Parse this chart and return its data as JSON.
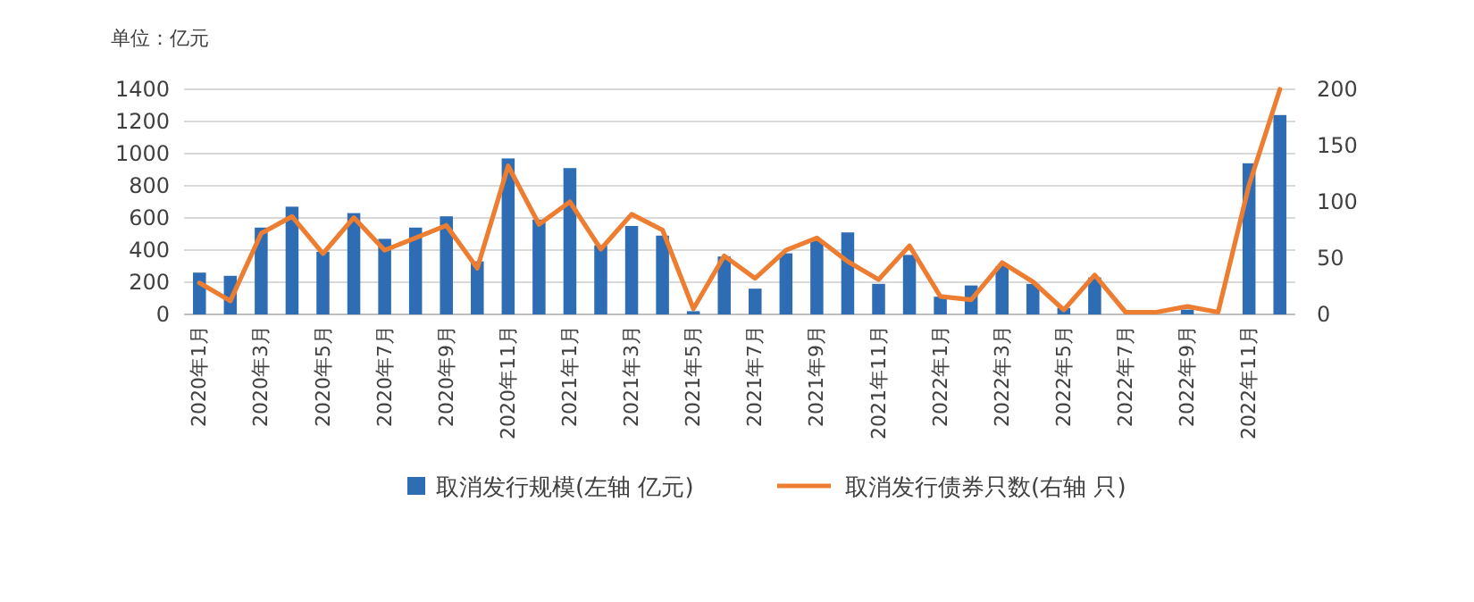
{
  "chart_data": {
    "type": "bar",
    "categories": [
      "2020年1月",
      null,
      "2020年3月",
      null,
      "2020年5月",
      null,
      "2020年7月",
      null,
      "2020年9月",
      null,
      "2020年11月",
      null,
      "2021年1月",
      null,
      "2021年3月",
      null,
      "2021年5月",
      null,
      "2021年7月",
      null,
      "2021年9月",
      null,
      "2021年11月",
      null,
      "2022年1月",
      null,
      "2022年3月",
      null,
      "2022年5月",
      null,
      "2022年7月",
      null,
      "2022年9月",
      null,
      "2022年11月",
      null
    ],
    "series": [
      {
        "name": "取消发行规模(左轴 亿元)",
        "color": "#2e6db4",
        "values": [
          260,
          240,
          540,
          670,
          390,
          630,
          470,
          540,
          610,
          330,
          970,
          590,
          910,
          430,
          550,
          490,
          20,
          360,
          160,
          380,
          460,
          510,
          190,
          370,
          110,
          180,
          300,
          190,
          40,
          230,
          0,
          0,
          30,
          0,
          940,
          1240
        ]
      },
      {
        "name": "取消发行债券只数(右轴 只)",
        "type": "line",
        "axis": "y2",
        "color": "#ed7d31",
        "values": [
          28,
          12,
          72,
          87,
          54,
          86,
          57,
          68,
          79,
          41,
          132,
          80,
          100,
          58,
          89,
          75,
          5,
          52,
          32,
          57,
          68,
          47,
          31,
          61,
          16,
          13,
          46,
          29,
          4,
          35,
          2,
          2,
          7,
          2,
          115,
          200
        ]
      }
    ],
    "ylim": [
      0,
      1400
    ],
    "yticks": [
      0,
      200,
      400,
      600,
      800,
      1000,
      1200,
      1400
    ],
    "y2lim": [
      0,
      200
    ],
    "y2ticks": [
      0,
      50,
      100,
      150,
      200
    ],
    "grid": "y",
    "legend": "bottom",
    "annotations": [
      "单位：亿元"
    ]
  }
}
